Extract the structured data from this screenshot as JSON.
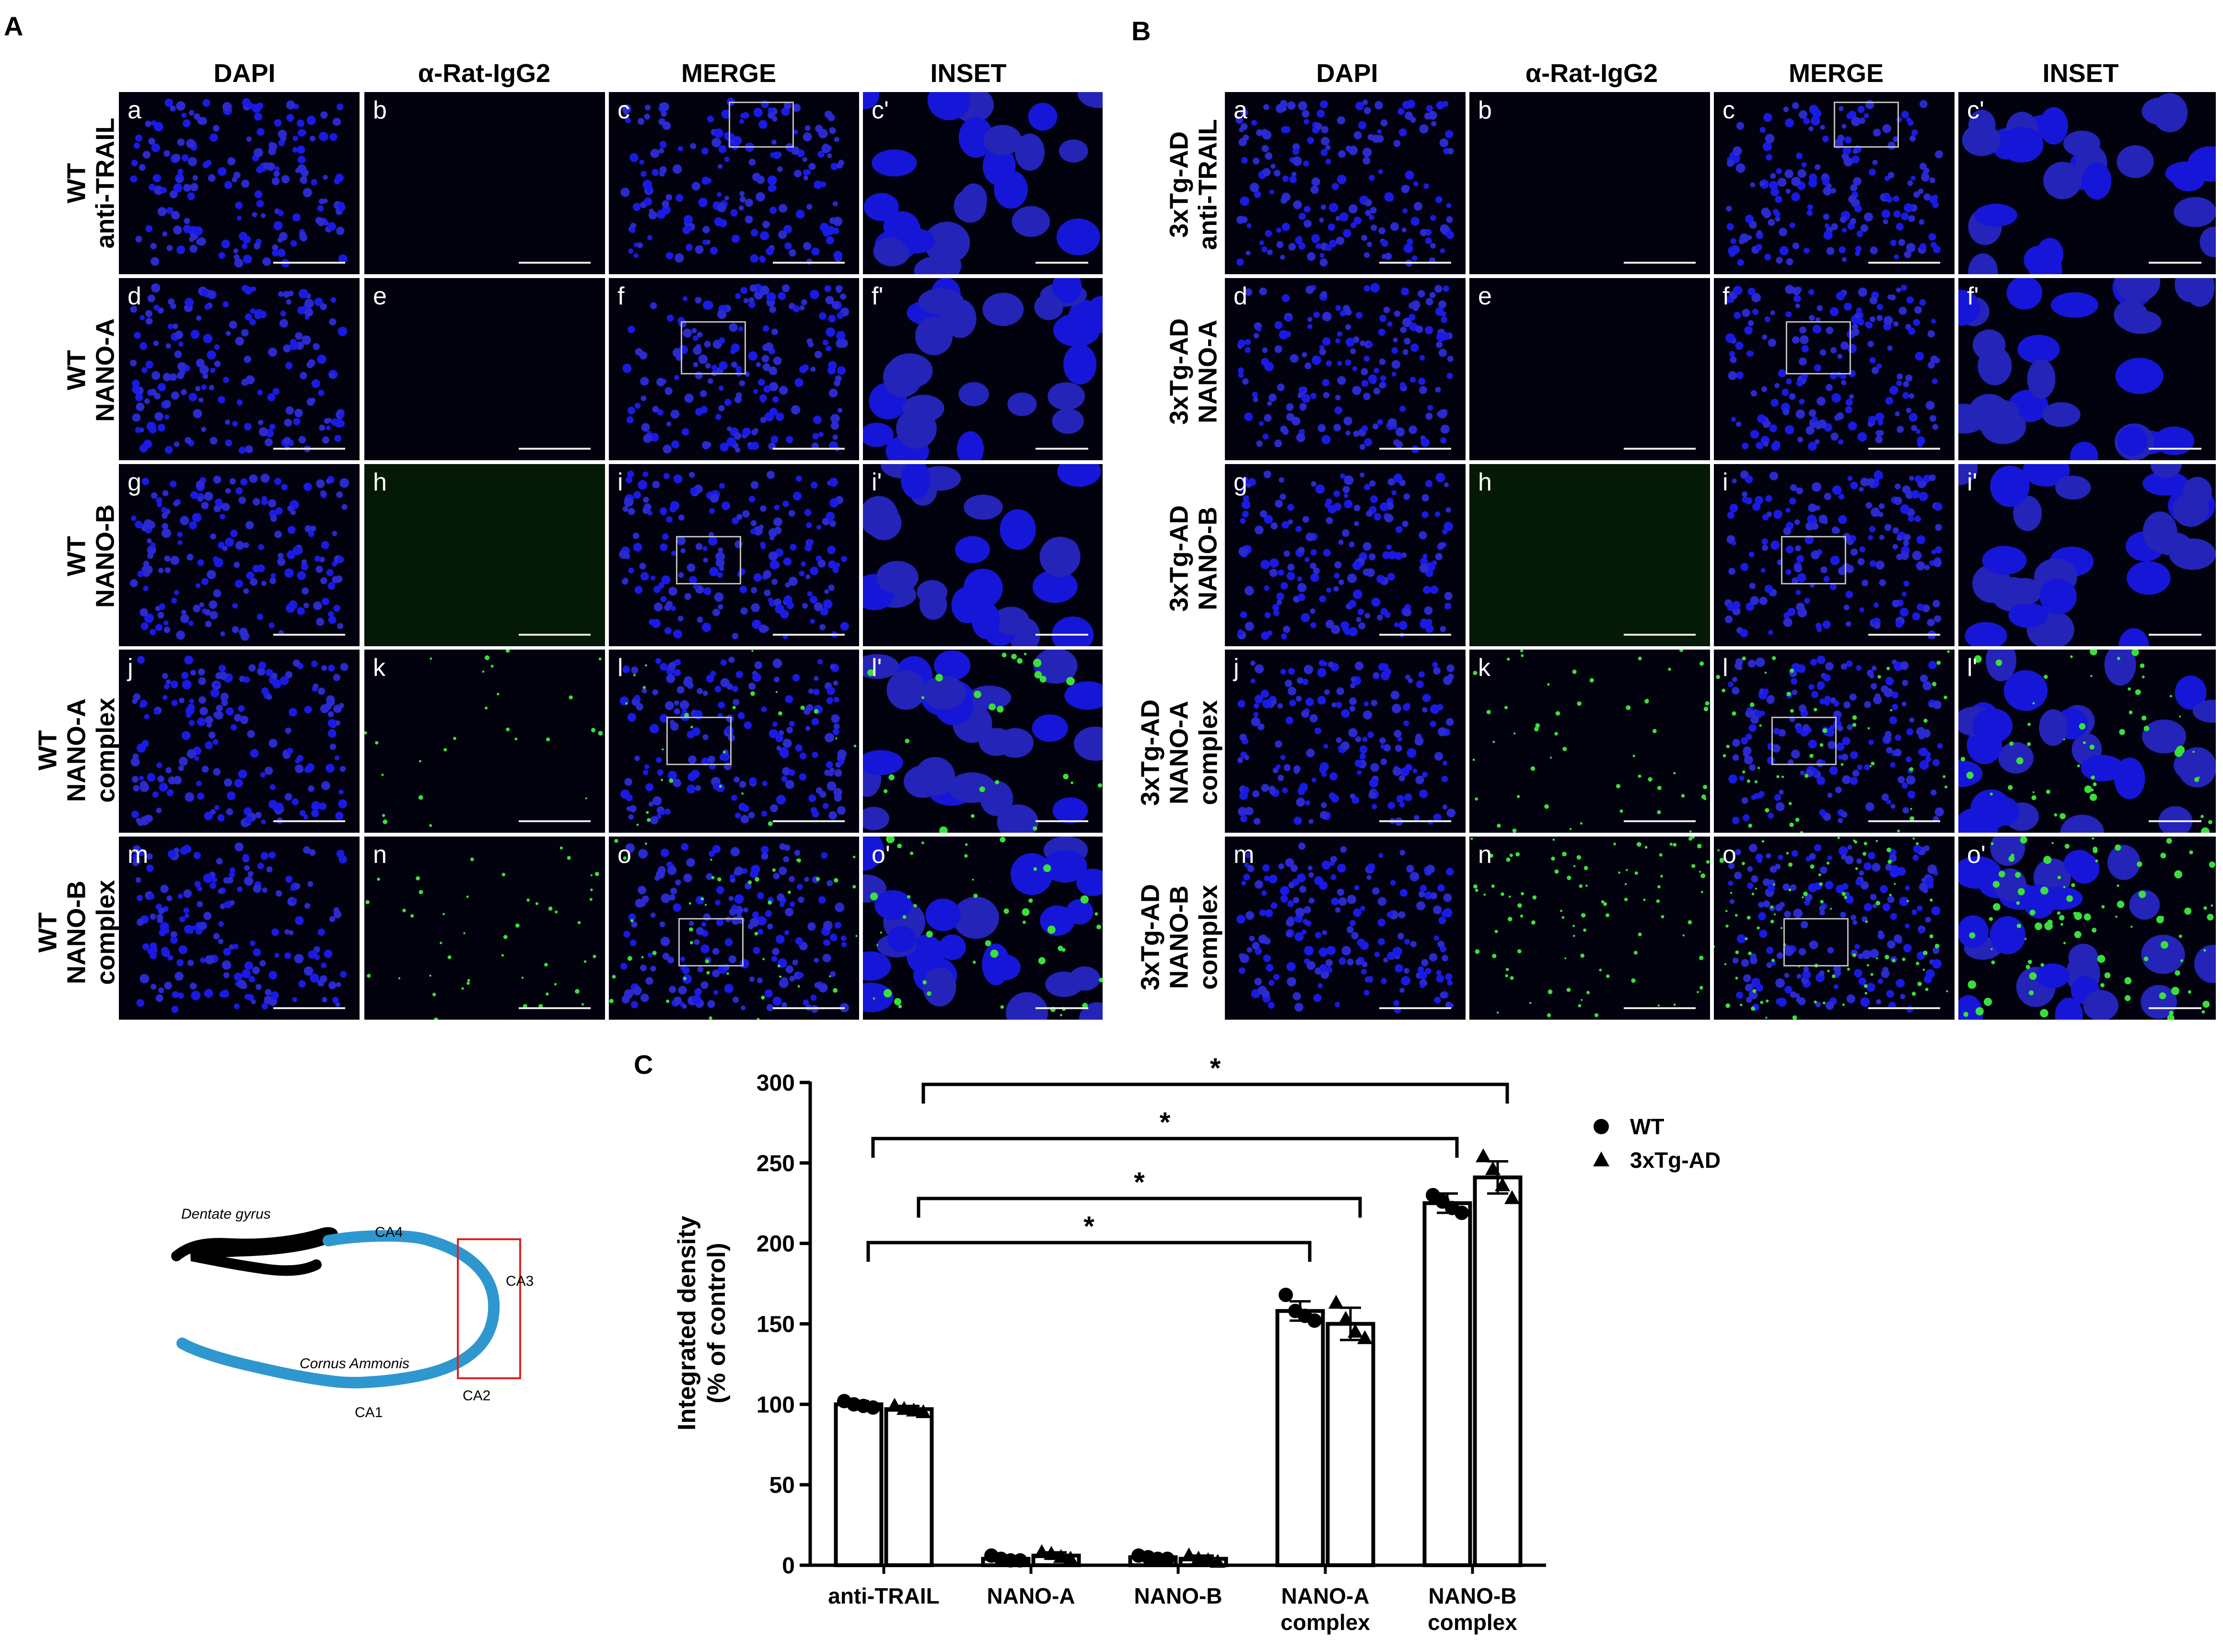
{
  "panels": {
    "A": {
      "label": "A",
      "columns": [
        "DAPI",
        "α-Rat-IgG2",
        "MERGE",
        "INSET"
      ],
      "rows": [
        {
          "line1": "WT",
          "line2": "anti-TRAIL",
          "letters": [
            "a",
            "b",
            "c",
            "c'"
          ]
        },
        {
          "line1": "WT",
          "line2": "NANO-A",
          "letters": [
            "d",
            "e",
            "f",
            "f'"
          ]
        },
        {
          "line1": "WT",
          "line2": "NANO-B",
          "letters": [
            "g",
            "h",
            "i",
            "i'"
          ]
        },
        {
          "line1": "WT",
          "line2": "NANO-A",
          "line3": "complex",
          "letters": [
            "j",
            "k",
            "l",
            "l'"
          ]
        },
        {
          "line1": "WT",
          "line2": "NANO-B",
          "line3": "complex",
          "letters": [
            "m",
            "n",
            "o",
            "o'"
          ]
        }
      ]
    },
    "B": {
      "label": "B",
      "columns": [
        "DAPI",
        "α-Rat-IgG2",
        "MERGE",
        "INSET"
      ],
      "rows": [
        {
          "line1": "3xTg-AD",
          "line2": "anti-TRAIL",
          "letters": [
            "a",
            "b",
            "c",
            "c'"
          ]
        },
        {
          "line1": "3xTg-AD",
          "line2": "NANO-A",
          "letters": [
            "d",
            "e",
            "f",
            "f'"
          ]
        },
        {
          "line1": "3xTg-AD",
          "line2": "NANO-B",
          "letters": [
            "g",
            "h",
            "i",
            "i'"
          ]
        },
        {
          "line1": "3xTg-AD",
          "line2": "NANO-A",
          "line3": "complex",
          "letters": [
            "j",
            "k",
            "l",
            "l'"
          ]
        },
        {
          "line1": "3xTg-AD",
          "line2": "NANO-B",
          "line3": "complex",
          "letters": [
            "m",
            "n",
            "o",
            "o'"
          ]
        }
      ]
    },
    "C": {
      "label": "C"
    }
  },
  "diagram": {
    "dentate_gyrus": "Dentate gyrus",
    "cornus_ammonis": "Cornus Ammonis",
    "regions": [
      "CA4",
      "CA3",
      "CA2",
      "CA1"
    ],
    "colors": {
      "dentate": "#000000",
      "ammonis": "#2e97d0",
      "box": "#e02020"
    }
  },
  "chart_data": {
    "type": "bar",
    "ylabel": "Integrated density\n(% of control)",
    "ylim": [
      0,
      300
    ],
    "yticks": [
      0,
      50,
      100,
      150,
      200,
      250,
      300
    ],
    "categories": [
      "anti-TRAIL",
      "NANO-A",
      "NANO-B",
      "NANO-A\ncomplex",
      "NANO-B\ncomplex"
    ],
    "series": [
      {
        "name": "WT",
        "marker": "circle",
        "values": [
          100,
          4,
          5,
          158,
          225
        ],
        "errors": [
          2,
          1,
          1,
          6,
          6
        ],
        "points": [
          [
            102,
            100,
            99,
            98
          ],
          [
            6,
            4,
            3,
            3
          ],
          [
            6,
            5,
            4,
            4
          ],
          [
            168,
            158,
            155,
            152
          ],
          [
            230,
            226,
            222,
            219
          ]
        ]
      },
      {
        "name": "3xTg-AD",
        "marker": "triangle",
        "values": [
          97,
          6,
          4,
          150,
          241
        ],
        "errors": [
          2,
          2,
          2,
          10,
          10
        ],
        "points": [
          [
            99,
            97,
            96,
            95
          ],
          [
            8,
            7,
            5,
            4
          ],
          [
            6,
            4,
            3,
            2
          ],
          [
            163,
            153,
            145,
            141
          ],
          [
            254,
            246,
            236,
            228
          ]
        ]
      }
    ],
    "significance": [
      {
        "from_category": 0,
        "to_category": 3,
        "label": "*"
      },
      {
        "from_category": 0,
        "to_category": 3,
        "label": "*"
      },
      {
        "from_category": 0,
        "to_category": 4,
        "label": "*"
      },
      {
        "from_category": 0,
        "to_category": 4,
        "label": "*"
      }
    ],
    "legend_position": "top-right"
  }
}
